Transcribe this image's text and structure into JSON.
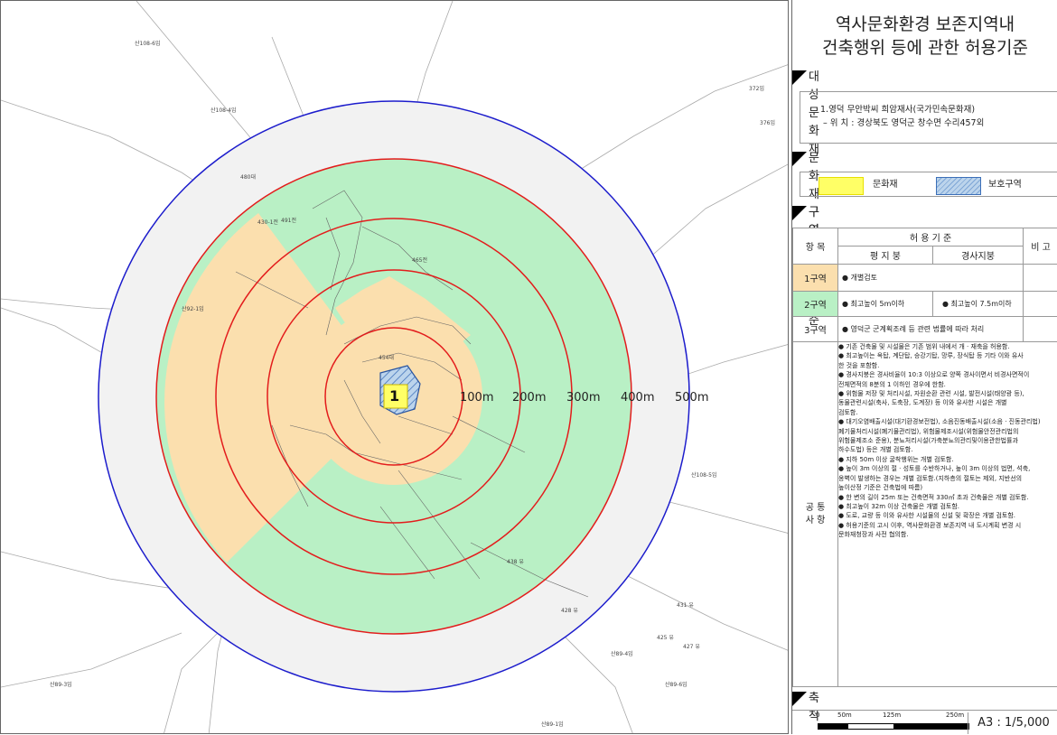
{
  "title": {
    "line1": "역사문화환경 보존지역내",
    "line2": "건축행위 등에 관한 허용기준"
  },
  "sections": {
    "heritage": "대상문화재",
    "area": "문화재구역",
    "standard": "구역별 허용기준",
    "scale": "축  척"
  },
  "heritage": {
    "line1": "1.영덕 무안박씨 희암재사(국가민속문화재)",
    "line2": " – 위 치 : 경상북도 영덕군 창수면 수리457외"
  },
  "legend": [
    {
      "label": "문화재",
      "color": "#ffff66"
    },
    {
      "label": "보호구역",
      "color": "#bcd4ec"
    }
  ],
  "table": {
    "item_header": "항 목",
    "standard_header": "허 용 기 준",
    "flat_roof": "평 지 붕",
    "slope_roof": "경사지붕",
    "note": "비 고",
    "zones": [
      {
        "name": "1구역",
        "color": "#fbdfae",
        "flat": "● 개별검토",
        "slope": ""
      },
      {
        "name": "2구역",
        "color": "#b9f0c5",
        "flat": "● 최고높이 5m이하",
        "slope": "● 최고높이 7.5m이하"
      },
      {
        "name": "3구역",
        "color": "#ffffff",
        "flat": "● 영덕군 군계획조례 등 관련 법률에 따라 처리",
        "slope": ""
      }
    ],
    "common_label": "공 통\n사 항",
    "common_items": [
      "● 기존 건축물 및 시설물은 기존 범위 내에서 개 · 재축을 허용함.",
      "● 최고높이는 옥탑, 계단탑, 승강기탑, 망루, 장식탑 등 기타 이와 유사",
      "   한 것을 포함함.",
      "● 경사지붕은 경사비율이 10:3 이상으로 양쪽 경사이면서 비경사면적이",
      "   전체면적의 8분의 1 이하인 경우에 한함.",
      "● 위험물 저장 및 처리시설, 자원순환 관련 시설, 발전시설(태양광 등),",
      "   동물관련시설(축사, 도축장, 도계장) 등 이와 유사한 시설은 개별",
      "   검토함.",
      "● 대기오염배출시설(대기환경보전법), 소음진동배출시설(소음 · 진동관리법)",
      "   폐기물처리시설(폐기물관리법), 위험물제조시설(위험물안전관리법의",
      "   위험물제조소 준용), 분뇨처리시설(가축분뇨의관리및이용관한법률과",
      "   하수도법) 등은 개별 검토함.",
      "● 지하 50m 이상 굴착행위는 개별 검토함.",
      "● 높이 3m 이상의 절 · 성토를 수반하거나, 높이 3m 이상의 법면, 석축,",
      "   옹벽이 발생하는 경우는 개별 검토함.(지하층의 절토는 제외, 지반선의",
      "   높이산정 기준은 건축법에 따름)",
      "● 한 변의 길이 25m 또는 건축면적 330㎡ 초과 건축물은 개별 검토함.",
      "● 최고높이 32m 이상 건축물은 개별 검토함.",
      "● 도로, 교량 등 이와 유사한 시설물의 신설 및 확장은 개별 검토함.",
      "● 허용기준의 고시 이후, 역사문화환경 보존지역 내 도시계획 변경 시",
      "   문화재청장과 사전 협의함."
    ]
  },
  "scale": {
    "ticks": [
      "0",
      "50m",
      "125m",
      "250m"
    ],
    "ratio": "A3 : 1/5,000"
  },
  "map": {
    "rings": [
      "100m",
      "200m",
      "300m",
      "400m",
      "500m"
    ],
    "site_number": "1",
    "zone_colors": {
      "zone1": "#fbdfae",
      "zone2": "#b9f0c5",
      "zone3": "#f2f2f2"
    },
    "ring_color_red": "#e31c1c",
    "ring_color_blue": "#1c1ccc",
    "parcel_labels": [
      "산108-6임",
      "산108-4임",
      "산92-1임",
      "산89-3임",
      "산89-1임",
      "산108-5임",
      "산89-4임",
      "산89-6임",
      "376임",
      "372임",
      "491전",
      "465전",
      "454대",
      "480대",
      "430-1전",
      "428 유",
      "427 유",
      "425 유",
      "431 유",
      "438 유"
    ]
  }
}
